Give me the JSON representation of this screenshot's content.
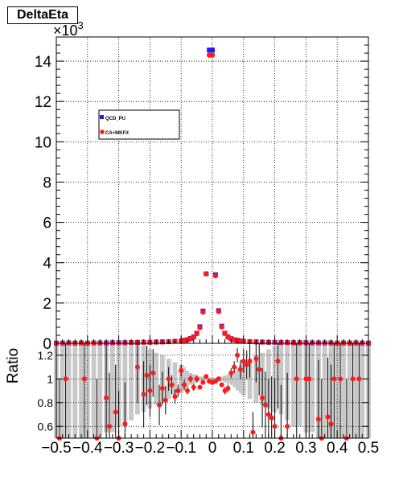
{
  "chart_data": {
    "title": "DeltaEta",
    "exponent_label": "×10",
    "exponent_power": "3",
    "colors": {
      "qcd": "#1a1aff",
      "ca": "#ff1a1a",
      "band": "#c8c8c8",
      "grid": "#000000"
    },
    "top": {
      "type": "scatter",
      "ylim": [
        0,
        15.2
      ],
      "yticks": [
        "0",
        "2",
        "4",
        "6",
        "8",
        "10",
        "12",
        "14"
      ],
      "ytick_values": [
        0,
        2,
        4,
        6,
        8,
        10,
        12,
        14
      ],
      "legend_position": "upper-left",
      "legend": [
        {
          "name": "QCD_PU",
          "color": "#1a1aff"
        },
        {
          "name": "CA+MKFit",
          "color": "#ff1a1a"
        }
      ],
      "series": [
        {
          "name": "QCD_PU",
          "color": "#1a1aff",
          "x": [
            -0.5,
            -0.48,
            -0.46,
            -0.44,
            -0.42,
            -0.4,
            -0.38,
            -0.36,
            -0.34,
            -0.32,
            -0.3,
            -0.28,
            -0.26,
            -0.24,
            -0.22,
            -0.2,
            -0.18,
            -0.16,
            -0.14,
            -0.12,
            -0.1,
            -0.09,
            -0.08,
            -0.07,
            -0.06,
            -0.05,
            -0.04,
            -0.03,
            -0.02,
            -0.01,
            0.0,
            0.01,
            0.02,
            0.03,
            0.04,
            0.05,
            0.06,
            0.07,
            0.08,
            0.09,
            0.1,
            0.12,
            0.14,
            0.16,
            0.18,
            0.2,
            0.22,
            0.24,
            0.26,
            0.28,
            0.3,
            0.32,
            0.34,
            0.36,
            0.38,
            0.4,
            0.42,
            0.44,
            0.46,
            0.48,
            0.5
          ],
          "y": [
            0.01,
            0.01,
            0.02,
            0.01,
            0.02,
            0.01,
            0.02,
            0.02,
            0.02,
            0.03,
            0.03,
            0.03,
            0.04,
            0.04,
            0.05,
            0.05,
            0.06,
            0.07,
            0.08,
            0.1,
            0.12,
            0.15,
            0.18,
            0.24,
            0.32,
            0.5,
            0.82,
            1.6,
            3.45,
            14.55,
            14.55,
            3.4,
            1.62,
            0.85,
            0.5,
            0.32,
            0.23,
            0.18,
            0.15,
            0.12,
            0.1,
            0.08,
            0.07,
            0.06,
            0.05,
            0.05,
            0.04,
            0.04,
            0.03,
            0.03,
            0.03,
            0.02,
            0.02,
            0.02,
            0.02,
            0.01,
            0.02,
            0.01,
            0.02,
            0.01,
            0.01
          ]
        },
        {
          "name": "CA+MKFit",
          "color": "#ff1a1a",
          "x": [
            -0.5,
            -0.48,
            -0.46,
            -0.44,
            -0.42,
            -0.4,
            -0.38,
            -0.36,
            -0.34,
            -0.32,
            -0.3,
            -0.28,
            -0.26,
            -0.24,
            -0.22,
            -0.2,
            -0.18,
            -0.16,
            -0.14,
            -0.12,
            -0.1,
            -0.09,
            -0.08,
            -0.07,
            -0.06,
            -0.05,
            -0.04,
            -0.03,
            -0.02,
            -0.01,
            0.0,
            0.01,
            0.02,
            0.03,
            0.04,
            0.05,
            0.06,
            0.07,
            0.08,
            0.09,
            0.1,
            0.12,
            0.14,
            0.16,
            0.18,
            0.2,
            0.22,
            0.24,
            0.26,
            0.28,
            0.3,
            0.32,
            0.34,
            0.36,
            0.38,
            0.4,
            0.42,
            0.44,
            0.46,
            0.48,
            0.5
          ],
          "y": [
            0.01,
            0.01,
            0.02,
            0.01,
            0.02,
            0.01,
            0.02,
            0.02,
            0.02,
            0.03,
            0.03,
            0.03,
            0.04,
            0.04,
            0.05,
            0.05,
            0.06,
            0.07,
            0.08,
            0.1,
            0.12,
            0.15,
            0.18,
            0.23,
            0.31,
            0.48,
            0.78,
            1.55,
            3.45,
            14.3,
            14.3,
            3.35,
            1.58,
            0.82,
            0.49,
            0.31,
            0.22,
            0.17,
            0.14,
            0.11,
            0.1,
            0.08,
            0.07,
            0.06,
            0.05,
            0.05,
            0.04,
            0.04,
            0.03,
            0.03,
            0.03,
            0.02,
            0.02,
            0.02,
            0.02,
            0.01,
            0.02,
            0.01,
            0.02,
            0.01,
            0.01
          ]
        }
      ]
    },
    "bottom": {
      "type": "scatter",
      "ylabel": "Ratio",
      "ylim": [
        0.5,
        1.3
      ],
      "yticks": [
        "0.6",
        "0.8",
        "1",
        "1.2"
      ],
      "ytick_values": [
        0.6,
        0.8,
        1.0,
        1.2
      ],
      "xlim": [
        -0.5,
        0.5
      ],
      "xticks": [
        "−0.5",
        "−0.4",
        "−0.3",
        "−0.2",
        "−0.1",
        "0",
        "0.1",
        "0.2",
        "0.3",
        "0.4",
        "0.5"
      ],
      "xtick_values": [
        -0.5,
        -0.4,
        -0.3,
        -0.2,
        -0.1,
        0,
        0.1,
        0.2,
        0.3,
        0.4,
        0.5
      ],
      "band_halfwidth": [
        0.5,
        0.5,
        0.5,
        0.5,
        0.5,
        0.5,
        0.5,
        0.5,
        0.45,
        0.45,
        0.4,
        0.4,
        0.35,
        0.3,
        0.28,
        0.25,
        0.22,
        0.2,
        0.17,
        0.14,
        0.12,
        0.1,
        0.07,
        0.05,
        0.04,
        0.03,
        0.02,
        0.02,
        0.01,
        0.01,
        0.01,
        0.01,
        0.02,
        0.02,
        0.03,
        0.04,
        0.05,
        0.07,
        0.1,
        0.12,
        0.14,
        0.17,
        0.2,
        0.22,
        0.25,
        0.28,
        0.3,
        0.35,
        0.4,
        0.4,
        0.45,
        0.45,
        0.5,
        0.5,
        0.5,
        0.5,
        0.5,
        0.5,
        0.5,
        0.5,
        0.5
      ],
      "points": {
        "x": [
          -0.49,
          -0.47,
          -0.41,
          -0.37,
          -0.34,
          -0.33,
          -0.31,
          -0.3,
          -0.28,
          -0.24,
          -0.22,
          -0.21,
          -0.2,
          -0.19,
          -0.17,
          -0.16,
          -0.15,
          -0.14,
          -0.13,
          -0.12,
          -0.11,
          -0.1,
          -0.09,
          -0.08,
          -0.07,
          -0.06,
          -0.05,
          -0.04,
          -0.03,
          -0.02,
          -0.01,
          0.0,
          0.01,
          0.02,
          0.03,
          0.04,
          0.05,
          0.06,
          0.07,
          0.08,
          0.09,
          0.1,
          0.11,
          0.12,
          0.13,
          0.14,
          0.15,
          0.16,
          0.17,
          0.18,
          0.19,
          0.2,
          0.21,
          0.22,
          0.24,
          0.27,
          0.3,
          0.31,
          0.34,
          0.35,
          0.37,
          0.38,
          0.39,
          0.41,
          0.43,
          0.45,
          0.47
        ],
        "y": [
          0.5,
          1.0,
          1.0,
          0.5,
          0.84,
          0.6,
          0.72,
          0.5,
          0.62,
          1.1,
          0.87,
          1.03,
          0.9,
          1.05,
          0.78,
          0.92,
          0.82,
          1.0,
          0.95,
          0.85,
          0.9,
          1.07,
          0.95,
          0.9,
          1.0,
          0.93,
          1.0,
          0.93,
          0.97,
          1.02,
          0.98,
          0.97,
          0.98,
          1.0,
          0.95,
          0.9,
          0.92,
          1.05,
          1.1,
          1.2,
          1.08,
          1.15,
          1.12,
          1.15,
          0.55,
          1.17,
          1.08,
          0.84,
          0.78,
          0.7,
          0.67,
          0.6,
          1.15,
          0.5,
          0.6,
          1.0,
          1.0,
          1.0,
          0.66,
          0.5,
          0.68,
          0.62,
          1.0,
          1.0,
          0.5,
          1.0,
          1.0
        ],
        "err": [
          0.5,
          0.5,
          0.5,
          0.5,
          0.45,
          0.45,
          0.4,
          0.4,
          0.35,
          0.3,
          0.28,
          0.25,
          0.22,
          0.2,
          0.17,
          0.14,
          0.12,
          0.1,
          0.08,
          0.06,
          0.05,
          0.05,
          0.04,
          0.03,
          0.03,
          0.03,
          0.03,
          0.02,
          0.02,
          0.01,
          0.01,
          0.01,
          0.01,
          0.02,
          0.02,
          0.03,
          0.03,
          0.04,
          0.05,
          0.06,
          0.08,
          0.1,
          0.12,
          0.14,
          0.17,
          0.2,
          0.22,
          0.25,
          0.28,
          0.3,
          0.35,
          0.4,
          0.4,
          0.45,
          0.45,
          0.5,
          0.5,
          0.5,
          0.5,
          0.5,
          0.5,
          0.5,
          0.5,
          0.5,
          0.5,
          0.5,
          0.5
        ]
      }
    }
  }
}
